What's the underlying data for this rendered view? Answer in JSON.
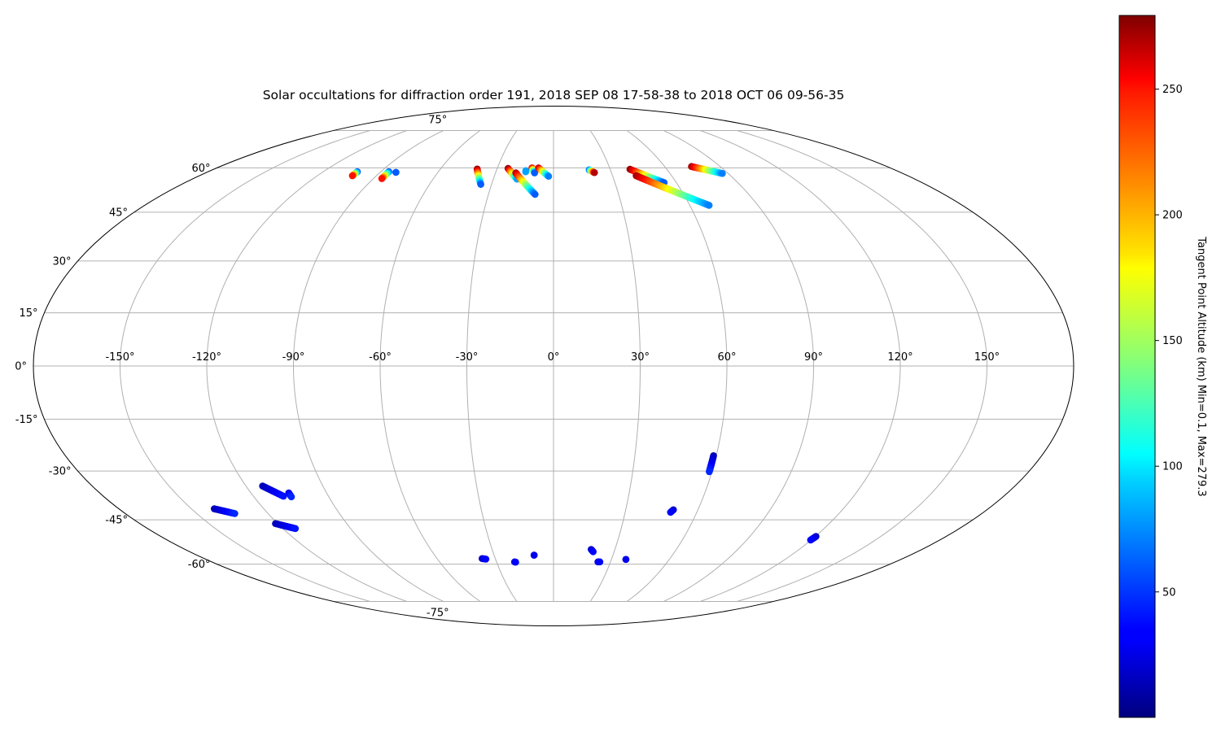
{
  "chart_data": {
    "type": "scatter",
    "projection": "mollweide",
    "title": "Solar occultations for diffraction order 191, 2018 SEP 08 17-58-38 to 2018 OCT 06 09-56-35",
    "xlabel": "",
    "ylabel": "",
    "grid": true,
    "longitude_ticks": [
      "-150°",
      "-120°",
      "-90°",
      "-60°",
      "-30°",
      "0°",
      "30°",
      "60°",
      "90°",
      "120°",
      "150°"
    ],
    "latitude_ticks": [
      "75°",
      "60°",
      "45°",
      "30°",
      "15°",
      "0°",
      "-15°",
      "-30°",
      "-45°",
      "-60°",
      "-75°"
    ],
    "colorbar": {
      "label": "Tangent Point Altitude (km) Min=0.1, Max=279.3",
      "colormap": "jet",
      "vmin": 0.1,
      "vmax": 279.3,
      "ticks": [
        "50",
        "100",
        "150",
        "200",
        "250"
      ],
      "tick_values": [
        50,
        100,
        150,
        200,
        250
      ]
    },
    "tracks": [
      {
        "lon_start": -102.2,
        "lat_start": 58.6,
        "lon_end": -102.2,
        "lat_end": 57.2,
        "alt_start": 60,
        "alt_end": 240
      },
      {
        "lon_start": -85.8,
        "lat_start": 58.6,
        "lon_end": -85.8,
        "lat_end": 56.2,
        "alt_start": 60,
        "alt_end": 240
      },
      {
        "lon_start": -81.8,
        "lat_start": 58.4,
        "lon_end": -81.8,
        "lat_end": 58.4,
        "alt_start": 60,
        "alt_end": 60
      },
      {
        "lon_start": -40.5,
        "lat_start": 59.6,
        "lon_end": -35.2,
        "lat_end": 54.2,
        "alt_start": 275,
        "alt_end": 60
      },
      {
        "lon_start": -24.2,
        "lat_start": 59.8,
        "lon_end": -18.2,
        "lat_end": 56.0,
        "alt_start": 275,
        "alt_end": 80
      },
      {
        "lon_start": -19.5,
        "lat_start": 58.2,
        "lon_end": -8.5,
        "lat_end": 50.8,
        "alt_start": 265,
        "alt_end": 60
      },
      {
        "lon_start": -14.5,
        "lat_start": 59.0,
        "lon_end": -14.5,
        "lat_end": 58.6,
        "alt_start": 80,
        "alt_end": 80
      },
      {
        "lon_start": -11.5,
        "lat_start": 60.0,
        "lon_end": -9.8,
        "lat_end": 58.2,
        "alt_start": 250,
        "alt_end": 60
      },
      {
        "lon_start": -8.0,
        "lat_start": 60.0,
        "lon_end": -2.5,
        "lat_end": 57.0,
        "alt_start": 260,
        "alt_end": 70
      },
      {
        "lon_start": 18.8,
        "lat_start": 59.3,
        "lon_end": 21.2,
        "lat_end": 58.3,
        "alt_start": 70,
        "alt_end": 265
      },
      {
        "lon_start": 40.5,
        "lat_start": 59.5,
        "lon_end": 54.0,
        "lat_end": 54.8,
        "alt_start": 275,
        "alt_end": 60
      },
      {
        "lon_start": 42.0,
        "lat_start": 57.2,
        "lon_end": 68.5,
        "lat_end": 47.2,
        "alt_start": 270,
        "alt_end": 70
      },
      {
        "lon_start": 74.5,
        "lat_start": 60.5,
        "lon_end": 87.0,
        "lat_end": 58.0,
        "alt_start": 270,
        "alt_end": 70
      },
      {
        "lon_start": -140.5,
        "lat_start": -41.5,
        "lon_end": -134.0,
        "lat_end": -43.0,
        "alt_start": 15,
        "alt_end": 45
      },
      {
        "lon_start": -113.5,
        "lat_start": -34.5,
        "lon_end": -108.0,
        "lat_end": -37.6,
        "alt_start": 15,
        "alt_end": 40
      },
      {
        "lon_start": -105.0,
        "lat_start": -36.6,
        "lon_end": -105.0,
        "lat_end": -37.8,
        "alt_start": 30,
        "alt_end": 45
      },
      {
        "lon_start": -121.0,
        "lat_start": -46.2,
        "lon_end": -114.5,
        "lat_end": -47.8,
        "alt_start": 15,
        "alt_end": 40
      },
      {
        "lon_start": 59.0,
        "lat_start": -25.5,
        "lon_end": 59.0,
        "lat_end": -30.2,
        "alt_start": 15,
        "alt_end": 45
      },
      {
        "lon_start": 49.8,
        "lat_start": -41.8,
        "lon_end": 49.0,
        "lat_end": -42.6,
        "alt_start": 20,
        "alt_end": 35
      },
      {
        "lon_start": 120.3,
        "lat_start": -50.4,
        "lon_end": 119.8,
        "lat_end": -51.6,
        "alt_start": 20,
        "alt_end": 35
      },
      {
        "lon_start": 18.4,
        "lat_start": -54.8,
        "lon_end": 19.6,
        "lat_end": -55.6,
        "alt_start": 20,
        "alt_end": 35
      },
      {
        "lon_start": -36.8,
        "lat_start": -58.0,
        "lon_end": -35.0,
        "lat_end": -58.2,
        "alt_start": 20,
        "alt_end": 35
      },
      {
        "lon_start": -20.5,
        "lat_start": -59.2,
        "lon_end": -20.0,
        "lat_end": -59.3,
        "alt_start": 25,
        "alt_end": 35
      },
      {
        "lon_start": -9.8,
        "lat_start": -56.8,
        "lon_end": -9.8,
        "lat_end": -56.8,
        "alt_start": 30,
        "alt_end": 30
      },
      {
        "lon_start": 23.4,
        "lat_start": -59.2,
        "lon_end": 24.4,
        "lat_end": -59.2,
        "alt_start": 25,
        "alt_end": 35
      },
      {
        "lon_start": 37.5,
        "lat_start": -58.3,
        "lon_end": 37.5,
        "lat_end": -58.3,
        "alt_start": 30,
        "alt_end": 30
      }
    ]
  }
}
